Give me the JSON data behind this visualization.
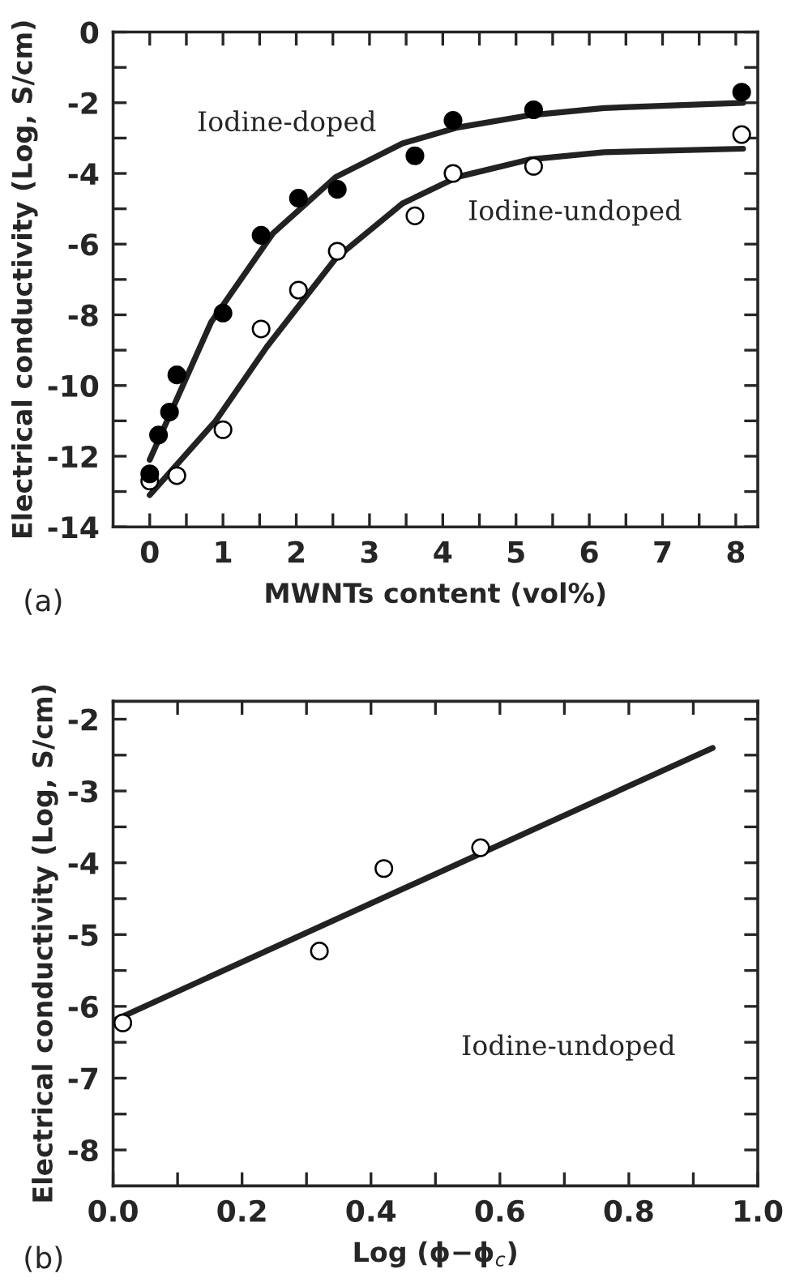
{
  "chart_data": [
    {
      "type": "scatter",
      "xlabel": "MWNTs content (vol%)",
      "ylabel": "Electrical conductivity (Log, S/cm)",
      "xlim": [
        -0.5,
        8.3
      ],
      "ylim": [
        -14,
        0
      ],
      "xticks": [
        0,
        {
          "value": 0.5,
          "label": null
        },
        1,
        {
          "value": 1.5,
          "label": null
        },
        2,
        {
          "value": 2.5,
          "label": null
        },
        3,
        {
          "value": 3.5,
          "label": null
        },
        4,
        {
          "value": 4.5,
          "label": null
        },
        5,
        {
          "value": 5.5,
          "label": null
        },
        6,
        {
          "value": 6.5,
          "label": null
        },
        7,
        {
          "value": 7.5,
          "label": null
        },
        8
      ],
      "yticks": [
        -14,
        {
          "value": -13,
          "label": null
        },
        -12,
        {
          "value": -11,
          "label": null
        },
        -10,
        {
          "value": -9,
          "label": null
        },
        -8,
        {
          "value": -7,
          "label": null
        },
        -6,
        {
          "value": -5,
          "label": null
        },
        -4,
        {
          "value": -3,
          "label": null
        },
        -2,
        {
          "value": -1,
          "label": null
        },
        0
      ],
      "grid": false,
      "legend": false,
      "series": [
        {
          "marker": "circle",
          "color": "#000000",
          "x": [
            0,
            0.12,
            0.27,
            0.37,
            1.0,
            1.52,
            2.03,
            2.56,
            3.62,
            4.14,
            5.24,
            8.08
          ],
          "values": [
            -12.5,
            -11.4,
            -10.75,
            -9.7,
            -7.95,
            -5.75,
            -4.7,
            -4.45,
            -3.5,
            -2.5,
            -2.2,
            -1.7
          ]
        },
        {
          "marker": "circle",
          "color": "#ffffff",
          "x": [
            0,
            0.37,
            1.0,
            1.52,
            2.03,
            2.56,
            3.62,
            4.14,
            5.24,
            8.08
          ],
          "values": [
            -12.7,
            -12.55,
            -11.25,
            -8.4,
            -7.3,
            -6.2,
            -5.2,
            -4.0,
            -3.8,
            -2.9
          ]
        },
        {
          "type": "line",
          "color": "#222222",
          "x": [
            0,
            0.84,
            1.68,
            2.54,
            3.45,
            4.2,
            5.2,
            6.2,
            8.1
          ],
          "values": [
            -12.1,
            -8.2,
            -5.7,
            -4.1,
            -3.15,
            -2.7,
            -2.35,
            -2.15,
            -2.0
          ]
        },
        {
          "type": "line",
          "color": "#222222",
          "x": [
            0,
            0.9,
            1.6,
            2.54,
            3.45,
            4.2,
            5.2,
            6.2,
            8.1
          ],
          "values": [
            -13.1,
            -11.0,
            -8.9,
            -6.4,
            -4.85,
            -4.1,
            -3.6,
            -3.4,
            -3.3
          ]
        }
      ],
      "annotations": [
        "Iodine-doped",
        "Iodine-undoped",
        "(a)"
      ]
    },
    {
      "type": "scatter",
      "xlabel": "Log (ϕ−ϕ$_{c}$)",
      "ylabel": "Electrical conductivity (Log, S/cm)",
      "xlim": [
        0,
        1.0
      ],
      "ylim": [
        -8.5,
        -1.75
      ],
      "xticks": [
        {
          "value": 0,
          "label": "0.0"
        },
        {
          "value": 0.1,
          "label": null
        },
        0.2,
        {
          "value": 0.3,
          "label": null
        },
        0.4,
        {
          "value": 0.5,
          "label": null
        },
        0.6,
        {
          "value": 0.7,
          "label": null
        },
        0.8,
        {
          "value": 0.9,
          "label": null
        },
        {
          "value": 1.0,
          "label": "1.0"
        }
      ],
      "yticks": [
        -8,
        {
          "value": -7.5,
          "label": null
        },
        -7,
        {
          "value": -6.5,
          "label": null
        },
        -6,
        {
          "value": -5.5,
          "label": null
        },
        -5,
        {
          "value": -4.5,
          "label": null
        },
        -4,
        {
          "value": -3.5,
          "label": null
        },
        -3,
        {
          "value": -2.5,
          "label": null
        },
        -2
      ],
      "grid": false,
      "legend": false,
      "series": [
        {
          "marker": "circle",
          "color": "#ffffff",
          "x": [
            0.015,
            0.32,
            0.42,
            0.57
          ],
          "values": [
            -6.23,
            -5.23,
            -4.08,
            -3.79
          ]
        },
        {
          "type": "line",
          "color": "#222222",
          "x": [
            0,
            0.93
          ],
          "values": [
            -6.2,
            -2.4
          ]
        }
      ],
      "annotations": [
        "Iodine-undoped",
        "(b)"
      ]
    }
  ]
}
